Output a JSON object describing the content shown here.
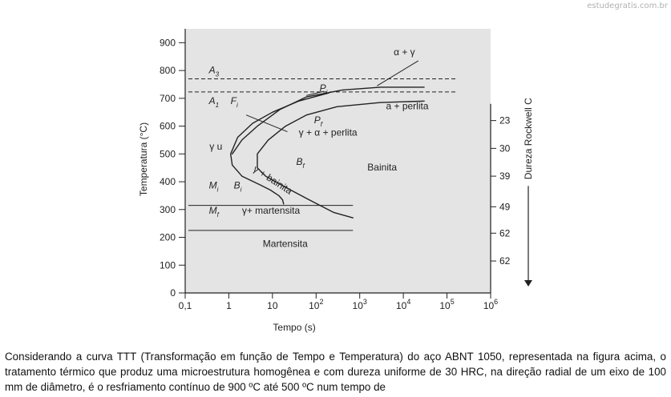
{
  "watermark": "estudegratis.com.br",
  "question_text": "Considerando a curva TTT (Transformação em função de Tempo e Temperatura) do aço ABNT 1050, representada na figura acima, o tratamento térmico que produz uma microestrutura homogênea e com dureza uniforme de 30 HRC, na direção radial de um eixo de 100 mm de diâmetro, é o resfriamento contínuo de 900 ºC até 500 ºC num tempo de",
  "chart_data": {
    "type": "line",
    "title": "",
    "xlabel": "Tempo (s)",
    "ylabel": "Temperatura (°C)",
    "y2label": "Dureza Rockwell C",
    "xscale": "log",
    "xlim": [
      0.1,
      1000000
    ],
    "ylim": [
      0,
      950
    ],
    "x_ticks": [
      {
        "value": 0.1,
        "label": "0,1",
        "exp": ""
      },
      {
        "value": 1,
        "label": "1",
        "exp": ""
      },
      {
        "value": 10,
        "label": "10",
        "exp": ""
      },
      {
        "value": 100,
        "label": "10",
        "exp": "2"
      },
      {
        "value": 1000,
        "label": "10",
        "exp": "3"
      },
      {
        "value": 10000,
        "label": "10",
        "exp": "4"
      },
      {
        "value": 100000,
        "label": "10",
        "exp": "5"
      },
      {
        "value": 1000000,
        "label": "10",
        "exp": "6"
      }
    ],
    "y_ticks": [
      0,
      100,
      200,
      300,
      400,
      500,
      600,
      700,
      800,
      900
    ],
    "hardness_ticks": [
      {
        "temp": 620,
        "label": "23"
      },
      {
        "temp": 520,
        "label": "30"
      },
      {
        "temp": 420,
        "label": "39"
      },
      {
        "temp": 310,
        "label": "49"
      },
      {
        "temp": 215,
        "label": "62"
      },
      {
        "temp": 115,
        "label": "62"
      }
    ],
    "reference_lines": [
      {
        "name": "A3",
        "temp": 770,
        "style": "dashed"
      },
      {
        "name": "A1",
        "temp": 723,
        "style": "dashed"
      },
      {
        "name": "Ms",
        "temp": 315,
        "style": "solid"
      },
      {
        "name": "Mf",
        "temp": 225,
        "style": "solid"
      }
    ],
    "series": [
      {
        "id": "start-curve",
        "points": [
          [
            200,
            720
          ],
          [
            40,
            690
          ],
          [
            10,
            650
          ],
          [
            3.5,
            610
          ],
          [
            1.6,
            560
          ],
          [
            1.1,
            500
          ],
          [
            1.2,
            460
          ],
          [
            2,
            420
          ],
          [
            5,
            390
          ],
          [
            9,
            370
          ],
          [
            14,
            350
          ],
          [
            17,
            335
          ],
          [
            18,
            320
          ]
        ]
      },
      {
        "id": "finish-curve",
        "points": [
          [
            30000,
            690
          ],
          [
            3000,
            685
          ],
          [
            300,
            670
          ],
          [
            60,
            640
          ],
          [
            20,
            600
          ],
          [
            8,
            550
          ],
          [
            4.5,
            500
          ],
          [
            4.5,
            450
          ],
          [
            7,
            420
          ],
          [
            20,
            380
          ],
          [
            80,
            330
          ],
          [
            250,
            290
          ],
          [
            700,
            270
          ]
        ]
      },
      {
        "id": "start-upper-branch",
        "points": [
          [
            30000,
            740
          ],
          [
            3000,
            740
          ],
          [
            400,
            730
          ],
          [
            60,
            705
          ],
          [
            15,
            660
          ],
          [
            4.5,
            600
          ],
          [
            2,
            550
          ],
          [
            1.2,
            500
          ]
        ]
      }
    ],
    "annotations": [
      {
        "text": "A",
        "sub": "3",
        "x": 0.35,
        "y": 790
      },
      {
        "text": "A",
        "sub": "1",
        "x": 0.35,
        "y": 680
      },
      {
        "text": "F",
        "sub": "i",
        "x": 1.1,
        "y": 680
      },
      {
        "text": "P",
        "sub": "i",
        "x": 120,
        "y": 725
      },
      {
        "text": "P",
        "sub": "f",
        "x": 90,
        "y": 610
      },
      {
        "text": "α + γ",
        "sub": "",
        "x": 6000,
        "y": 855
      },
      {
        "text": "a + perlita",
        "sub": "",
        "x": 4000,
        "y": 660
      },
      {
        "text": "γ + α + perlita",
        "sub": "",
        "x": 40,
        "y": 565
      },
      {
        "text": "γ u",
        "sub": "",
        "x": 0.36,
        "y": 515
      },
      {
        "text": "γ + bainita",
        "sub": "",
        "x": 3.5,
        "y": 440
      },
      {
        "text": "B",
        "sub": "f",
        "x": 35,
        "y": 460
      },
      {
        "text": "Bainita",
        "sub": "",
        "x": 1500,
        "y": 440
      },
      {
        "text": "M",
        "sub": "i",
        "x": 0.35,
        "y": 375
      },
      {
        "text": "B",
        "sub": "i",
        "x": 1.3,
        "y": 375
      },
      {
        "text": "M",
        "sub": "f",
        "x": 0.35,
        "y": 285
      },
      {
        "text": "γ+ martensita",
        "sub": "",
        "x": 2,
        "y": 285
      },
      {
        "text": "Martensita",
        "sub": "",
        "x": 6,
        "y": 165
      }
    ]
  }
}
